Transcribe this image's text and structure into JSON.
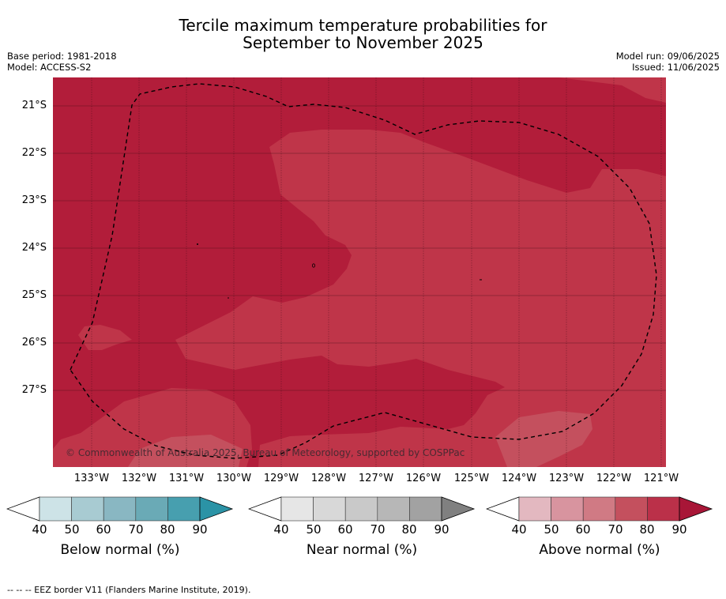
{
  "header": {
    "title_line1": "Tercile maximum temperature probabilities for",
    "title_line2": "September to November 2025",
    "base_period": "Base period: 1981-2018",
    "model": "Model: ACCESS-S2",
    "model_run": "Model run: 09/06/2025",
    "issued": "Issued: 11/06/2025"
  },
  "map": {
    "copyright": "© Commonwealth of Australia 2025, Bureau of Meteorology, supported by COSPPac",
    "lat_labels": [
      "21°S",
      "22°S",
      "23°S",
      "24°S",
      "25°S",
      "26°S",
      "27°S"
    ],
    "lon_labels": [
      "133°W",
      "132°W",
      "131°W",
      "130°W",
      "129°W",
      "128°W",
      "127°W",
      "126°W",
      "125°W",
      "124°W",
      "123°W",
      "122°W",
      "121°W"
    ],
    "colors": {
      "above_80_90": "#b21d3a",
      "above_70_80": "#bf3549",
      "above_60_70": "#c4505e"
    }
  },
  "colorbars": [
    {
      "title": "Below normal (%)",
      "ticks": [
        "40",
        "50",
        "60",
        "70",
        "80",
        "90"
      ],
      "colors": [
        "#ffffff",
        "#cde3e7",
        "#a8cbd2",
        "#89b7c2",
        "#6aaab6",
        "#479faf",
        "#2b93a6"
      ]
    },
    {
      "title": "Near normal (%)",
      "ticks": [
        "40",
        "50",
        "60",
        "70",
        "80",
        "90"
      ],
      "colors": [
        "#ffffff",
        "#e6e6e6",
        "#d8d8d8",
        "#c9c9c9",
        "#b7b7b7",
        "#a2a2a2",
        "#808080"
      ]
    },
    {
      "title": "Above normal (%)",
      "ticks": [
        "40",
        "50",
        "60",
        "70",
        "80",
        "90"
      ],
      "colors": [
        "#ffffff",
        "#e3b8c0",
        "#d8949f",
        "#d07a84",
        "#c4505e",
        "#bb3049",
        "#a81637"
      ]
    }
  ],
  "footer": {
    "eez_legend": "--  --  -- EEZ border V11 (Flanders Marine Institute, 2019)."
  }
}
